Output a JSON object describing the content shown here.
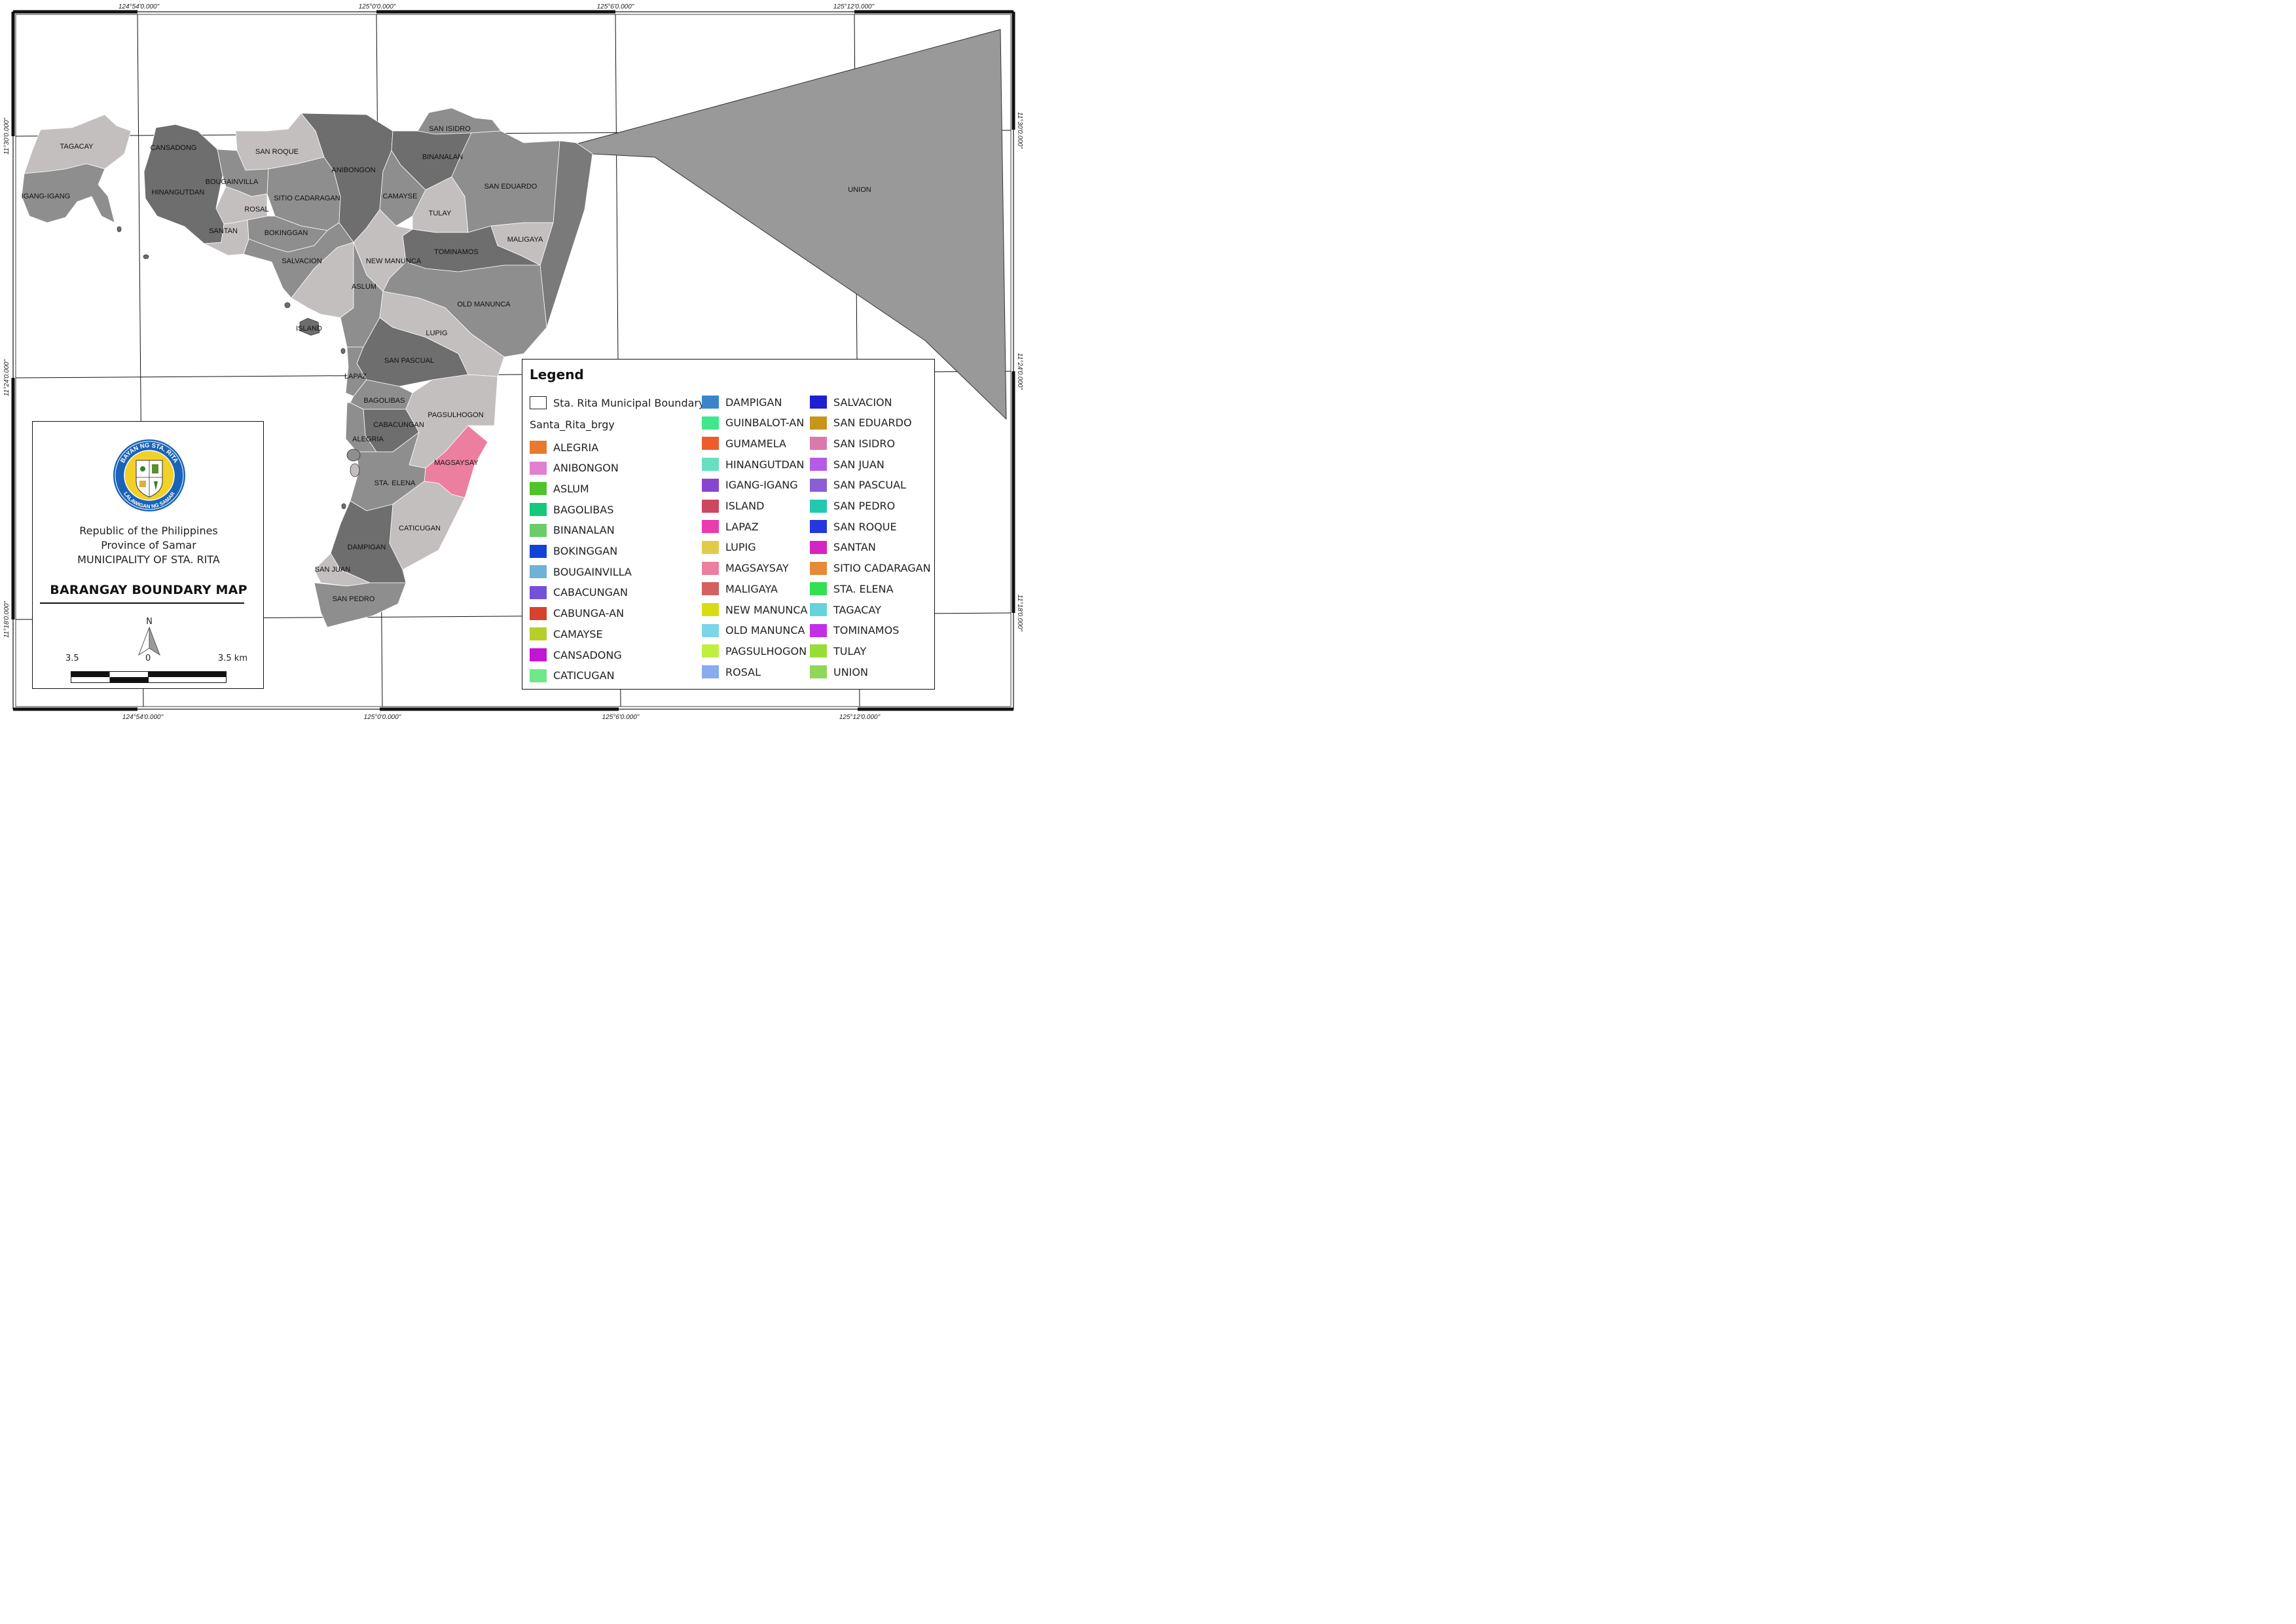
{
  "coordinates": {
    "top": [
      "124°54'0.000\"",
      "125°0'0.000\"",
      "125°6'0.000\"",
      "125°12'0.000\""
    ],
    "bottom": [
      "124°54'0.000\"",
      "125°0'0.000\"",
      "125°6'0.000\"",
      "125°12'0.000\""
    ],
    "left": [
      "11°30'0.000\"",
      "11°24'0.000\"",
      "11°18'0.000\""
    ],
    "right": [
      "11°30'0.000\"",
      "11°24'0.000\"",
      "11°18'0.000\""
    ]
  },
  "barangay_labels": {
    "tagacay": "TAGACAY",
    "cansadong": "CANSADONG",
    "san_roque": "SAN ROQUE",
    "san_isidro": "SAN ISIDRO",
    "binanalan": "BINANALAN",
    "anibongon": "ANIBONGON",
    "san_eduardo": "SAN EDUARDO",
    "union": "UNION",
    "igang_igang": "IGANG-IGANG",
    "hinangutdan": "HINANGUTDAN",
    "bougainvilla": "BOUGAINVILLA",
    "rosal": "ROSAL",
    "sitio_cadaragan": "SITIO CADARAGAN",
    "camayse": "CAMAYSE",
    "tulay": "TULAY",
    "santan": "SANTAN",
    "bokinggan": "BOKINGGAN",
    "maligaya": "MALIGAYA",
    "tominamos": "TOMINAMOS",
    "salvacion": "SALVACION",
    "new_manunca": "NEW MANUNCA",
    "aslum": "ASLUM",
    "old_manunca": "OLD MANUNCA",
    "island": "ISLAND",
    "lupig": "LUPIG",
    "san_pascual": "SAN PASCUAL",
    "lapaz": "LAPAZ",
    "bagolibas": "BAGOLIBAS",
    "pagsulhogon": "PAGSULHOGON",
    "cabacungan": "CABACUNGAN",
    "alegria": "ALEGRIA",
    "magsaysay": "MAGSAYSAY",
    "sta_elena": "STA. ELENA",
    "caticugan": "CATICUGAN",
    "dampigan": "DAMPIGAN",
    "san_juan": "SAN JUAN",
    "san_pedro": "SAN PEDRO"
  },
  "colors": {
    "highlight": "#ec7fa0",
    "shade_dark": "#6e6e6e",
    "shade_mid": "#8e8e8e",
    "shade_light": "#c3bfbf",
    "union": "#999999"
  },
  "title_panel": {
    "seal_top_text": "BAYAN NG STA. RITA",
    "seal_bottom_text": "LALAWIGAN NG SAMAR",
    "line1": "Republic of the Philippines",
    "line2": "Province of Samar",
    "line3": "MUNICIPALITY OF STA. RITA",
    "map_title": "BARANGAY BOUNDARY MAP",
    "north": "N",
    "scale_left": "3.5",
    "scale_mid": "0",
    "scale_right": "3.5 km"
  },
  "legend": {
    "title": "Legend",
    "boundary_label": "Sta. Rita Municipal Boundary",
    "layer_name": "Santa_Rita_brgy",
    "items": [
      {
        "label": "ALEGRIA",
        "color": "#e77a2e"
      },
      {
        "label": "ANIBONGON",
        "color": "#e37fd0"
      },
      {
        "label": "ASLUM",
        "color": "#4ec42a"
      },
      {
        "label": "BAGOLIBAS",
        "color": "#14c97c"
      },
      {
        "label": "BINANALAN",
        "color": "#6dcc6a"
      },
      {
        "label": "BOKINGGAN",
        "color": "#1143d6"
      },
      {
        "label": "BOUGAINVILLA",
        "color": "#6fb2d6"
      },
      {
        "label": "CABACUNGAN",
        "color": "#7452d8"
      },
      {
        "label": "CABUNGA-AN",
        "color": "#d6422c"
      },
      {
        "label": "CAMAYSE",
        "color": "#b8cf2a"
      },
      {
        "label": "CANSADONG",
        "color": "#c514d4"
      },
      {
        "label": "CATICUGAN",
        "color": "#6ee889"
      },
      {
        "label": "DAMPIGAN",
        "color": "#3a84cc"
      },
      {
        "label": "GUINBALOT-AN",
        "color": "#3ee88c"
      },
      {
        "label": "GUMAMELA",
        "color": "#ee5c2c"
      },
      {
        "label": "HINANGUTDAN",
        "color": "#66e0c0"
      },
      {
        "label": "IGANG-IGANG",
        "color": "#8845d0"
      },
      {
        "label": "ISLAND",
        "color": "#cf4660"
      },
      {
        "label": "LAPAZ",
        "color": "#ea3cae"
      },
      {
        "label": "LUPIG",
        "color": "#e3cb48"
      },
      {
        "label": "MAGSAYSAY",
        "color": "#ec7fa0"
      },
      {
        "label": "MALIGAYA",
        "color": "#d46060"
      },
      {
        "label": "NEW MANUNCA",
        "color": "#dbdb14"
      },
      {
        "label": "OLD MANUNCA",
        "color": "#7ad6e8"
      },
      {
        "label": "PAGSULHOGON",
        "color": "#bff03e"
      },
      {
        "label": "ROSAL",
        "color": "#88acee"
      },
      {
        "label": "SALVACION",
        "color": "#1e1ed2"
      },
      {
        "label": "SAN EDUARDO",
        "color": "#c9941a"
      },
      {
        "label": "SAN ISIDRO",
        "color": "#d97aac"
      },
      {
        "label": "SAN JUAN",
        "color": "#b45ce6"
      },
      {
        "label": "SAN PASCUAL",
        "color": "#8a5ed4"
      },
      {
        "label": "SAN PEDRO",
        "color": "#22c9b2"
      },
      {
        "label": "SAN ROQUE",
        "color": "#2438df"
      },
      {
        "label": "SANTAN",
        "color": "#d424c4"
      },
      {
        "label": "SITIO CADARAGAN",
        "color": "#e68a3a"
      },
      {
        "label": "STA. ELENA",
        "color": "#33e052"
      },
      {
        "label": "TAGACAY",
        "color": "#64d4d8"
      },
      {
        "label": "TOMINAMOS",
        "color": "#c42ee6"
      },
      {
        "label": "TULAY",
        "color": "#98dd36"
      },
      {
        "label": "UNION",
        "color": "#90d658"
      }
    ]
  }
}
